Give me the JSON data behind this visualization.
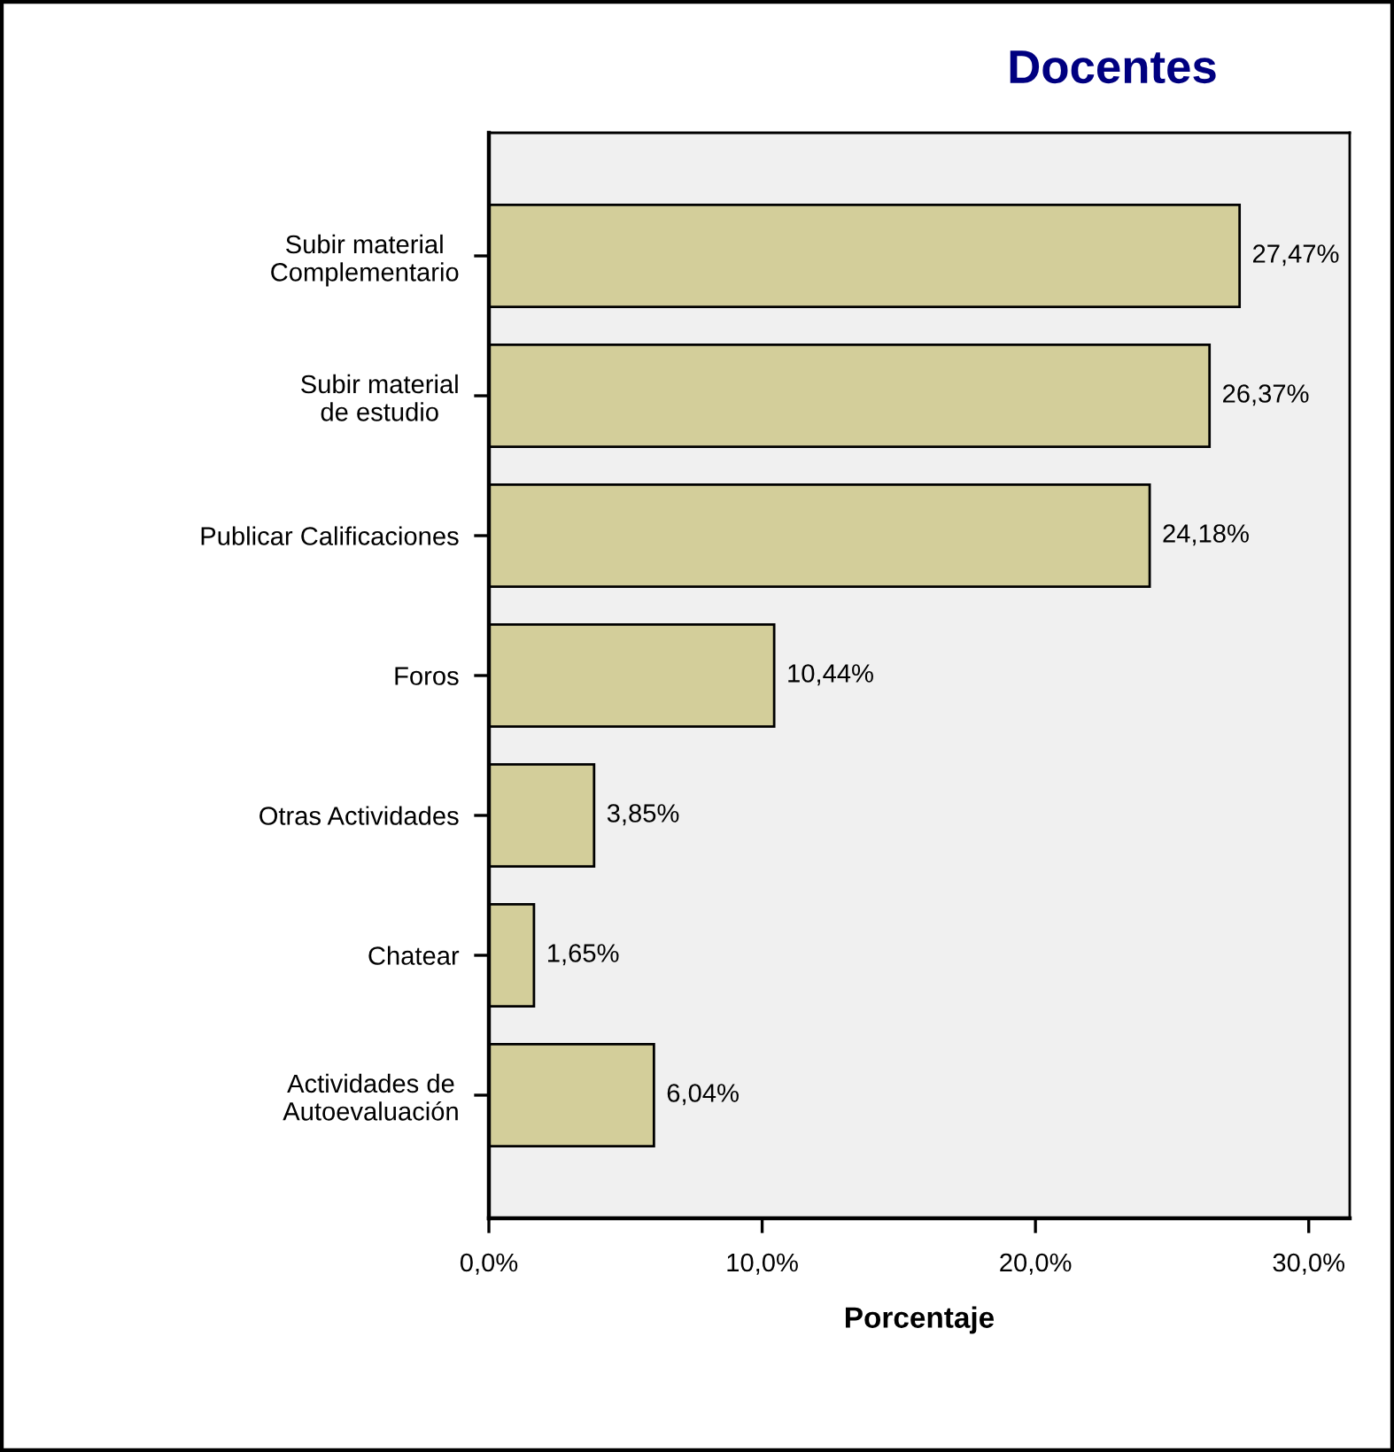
{
  "chart_data": {
    "type": "bar",
    "orientation": "horizontal",
    "title": "Docentes",
    "xlabel": "Porcentaje",
    "categories": [
      "Subir material\nComplementario",
      "Subir material\nde estudio",
      "Publicar Calificaciones",
      "Foros",
      "Otras Actividades",
      "Chatear",
      "Actividades de\nAutoevaluación"
    ],
    "values": [
      27.47,
      26.37,
      24.18,
      10.44,
      3.85,
      1.65,
      6.04
    ],
    "color": "#d3ce9a",
    "value_labels": [
      "27,47%",
      "26,37%",
      "24,18%",
      "10,44%",
      "3,85%",
      "1,65%",
      "6,04%"
    ],
    "xlim": [
      0,
      31.5
    ],
    "xticks": [
      {
        "value": 0,
        "label": "0,0%"
      },
      {
        "value": 10,
        "label": "10,0%"
      },
      {
        "value": 20,
        "label": "20,0%"
      },
      {
        "value": 30,
        "label": "30,0%"
      }
    ]
  }
}
